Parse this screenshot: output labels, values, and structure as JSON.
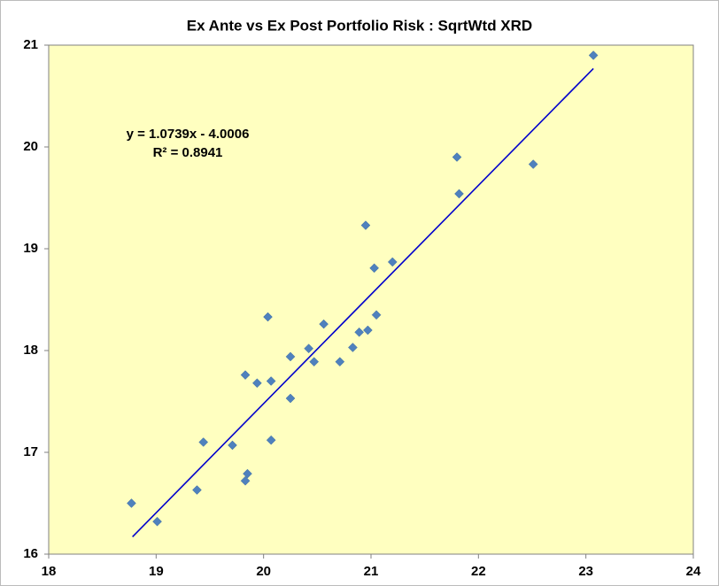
{
  "chart_data": {
    "type": "scatter",
    "title": "Ex Ante vs Ex Post Portfolio Risk : SqrtWtd XRD",
    "annotations": [
      "y = 1.0739x - 4.0006",
      "R² = 0.8941"
    ],
    "x": [
      23.07,
      21.8,
      22.51,
      21.82,
      20.95,
      21.2,
      21.03,
      20.04,
      21.05,
      20.56,
      20.89,
      20.97,
      20.42,
      20.83,
      20.25,
      20.47,
      20.71,
      19.83,
      19.94,
      20.07,
      20.25,
      19.44,
      19.71,
      20.07,
      19.85,
      19.83,
      19.38,
      18.77,
      19.01
    ],
    "values": [
      20.9,
      19.9,
      19.83,
      19.54,
      19.23,
      18.87,
      18.81,
      18.33,
      18.35,
      18.26,
      18.18,
      18.2,
      18.02,
      18.03,
      17.94,
      17.89,
      17.89,
      17.76,
      17.68,
      17.7,
      17.53,
      17.1,
      17.07,
      17.12,
      16.79,
      16.72,
      16.63,
      16.5,
      16.32
    ],
    "color": "#4f81bd",
    "trendline": {
      "x": [
        18.78,
        23.07
      ],
      "y": [
        16.17,
        20.77
      ],
      "color": "#0000cc"
    },
    "xlim": [
      18,
      24
    ],
    "xticks": [
      18,
      19,
      20,
      21,
      22,
      23,
      24
    ],
    "ylim": [
      16,
      21
    ],
    "yticks": [
      16,
      17,
      18,
      19,
      20,
      21
    ],
    "grid": false,
    "background": "#ffffc0"
  }
}
